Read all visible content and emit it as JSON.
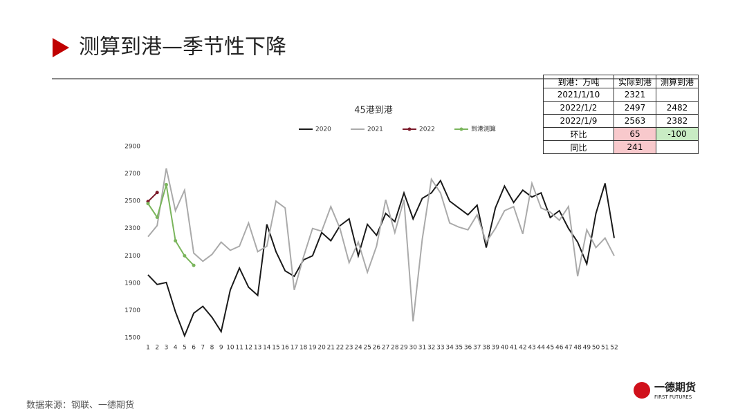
{
  "header": {
    "title": "测算到港—季节性下降"
  },
  "chart_data": {
    "type": "line",
    "title": "45港到港",
    "categories": [
      1,
      2,
      3,
      4,
      5,
      6,
      7,
      8,
      9,
      10,
      11,
      12,
      13,
      14,
      15,
      16,
      17,
      18,
      19,
      20,
      21,
      22,
      23,
      24,
      25,
      26,
      27,
      28,
      29,
      30,
      31,
      32,
      33,
      34,
      35,
      36,
      37,
      38,
      39,
      40,
      41,
      42,
      43,
      44,
      45,
      46,
      47,
      48,
      49,
      50,
      51,
      52
    ],
    "series": [
      {
        "name": "2020",
        "color": "#1a1a1a",
        "markers": false,
        "values": [
          1960,
          1890,
          1905,
          1690,
          1515,
          1680,
          1730,
          1650,
          1545,
          1850,
          2010,
          1870,
          1810,
          2330,
          2130,
          1990,
          1950,
          2070,
          2100,
          2270,
          2210,
          2320,
          2370,
          2100,
          2330,
          2250,
          2410,
          2350,
          2560,
          2370,
          2520,
          2560,
          2650,
          2500,
          2450,
          2400,
          2470,
          2160,
          2450,
          2610,
          2490,
          2580,
          2530,
          2560,
          2380,
          2430,
          2300,
          2200,
          2040,
          2410,
          2630,
          2230
        ]
      },
      {
        "name": "2021",
        "color": "#aaaaaa",
        "markers": false,
        "values": [
          2240,
          2321,
          2740,
          2430,
          2580,
          2120,
          2060,
          2110,
          2200,
          2140,
          2170,
          2340,
          2130,
          2170,
          2500,
          2450,
          1850,
          2090,
          2300,
          2280,
          2460,
          2300,
          2050,
          2200,
          1980,
          2170,
          2510,
          2270,
          2510,
          1620,
          2220,
          2660,
          2560,
          2340,
          2310,
          2290,
          2400,
          2200,
          2300,
          2430,
          2460,
          2260,
          2630,
          2450,
          2420,
          2360,
          2460,
          1950,
          2290,
          2160,
          2230,
          2100
        ]
      },
      {
        "name": "2022",
        "color": "#7b1a2a",
        "markers": true,
        "values": [
          2497,
          2563,
          null,
          null,
          null,
          null,
          null,
          null,
          null,
          null,
          null,
          null,
          null,
          null,
          null,
          null,
          null,
          null,
          null,
          null,
          null,
          null,
          null,
          null,
          null,
          null,
          null,
          null,
          null,
          null,
          null,
          null,
          null,
          null,
          null,
          null,
          null,
          null,
          null,
          null,
          null,
          null,
          null,
          null,
          null,
          null,
          null,
          null,
          null,
          null,
          null,
          null
        ]
      },
      {
        "name": "到港测算",
        "color": "#7ab55c",
        "markers": true,
        "values": [
          2482,
          2382,
          2620,
          2210,
          2100,
          2030,
          null,
          null,
          null,
          null,
          null,
          null,
          null,
          null,
          null,
          null,
          null,
          null,
          null,
          null,
          null,
          null,
          null,
          null,
          null,
          null,
          null,
          null,
          null,
          null,
          null,
          null,
          null,
          null,
          null,
          null,
          null,
          null,
          null,
          null,
          null,
          null,
          null,
          null,
          null,
          null,
          null,
          null,
          null,
          null,
          null,
          null
        ]
      }
    ],
    "ylim": [
      1500,
      2900
    ],
    "yticks": [
      1500,
      1700,
      1900,
      2100,
      2300,
      2500,
      2700,
      2900
    ],
    "grid": false,
    "legend": "top"
  },
  "table": {
    "header": [
      "到港：万吨",
      "实际到港",
      "测算到港"
    ],
    "rows": [
      [
        "2021/1/10",
        2321,
        null
      ],
      [
        "2022/1/2",
        2497,
        2482
      ],
      [
        "2022/1/9",
        2563,
        2382
      ],
      [
        "环比",
        65,
        -100
      ],
      [
        "同比",
        241,
        null
      ]
    ]
  },
  "footer": {
    "source": "数据来源：钢联、一德期货",
    "logo": "一德期货",
    "logo_en": "FIRST FUTURES"
  }
}
